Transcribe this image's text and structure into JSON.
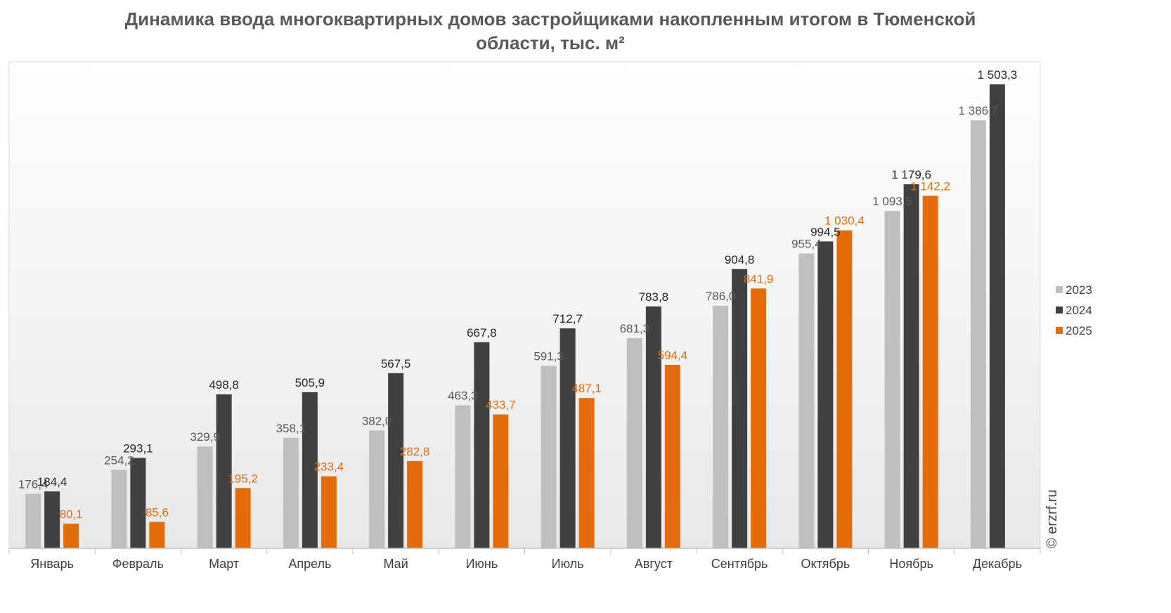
{
  "chart_data": {
    "type": "bar",
    "title": "Динамика ввода многоквартирных домов застройщиками накопленным итогом в Тюменской области, тыс. м²",
    "title_lines": [
      "Динамика ввода многоквартирных домов застройщиками накопленным итогом в Тюменской",
      "области, тыс. м²"
    ],
    "categories": [
      "Январь",
      "Февраль",
      "Март",
      "Апрель",
      "Май",
      "Июнь",
      "Июль",
      "Август",
      "Сентябрь",
      "Октябрь",
      "Ноябрь",
      "Декабрь"
    ],
    "series": [
      {
        "name": "2023",
        "color": "#bfbfbf",
        "label_color": "#595959",
        "values": [
          176.4,
          254.2,
          329.9,
          358.1,
          382.0,
          463.3,
          591.3,
          681.3,
          786.0,
          955.4,
          1093.5,
          1386.7
        ],
        "labels": [
          "176,4",
          "254,2",
          "329,9",
          "358,1",
          "382,0",
          "463,3",
          "591,3",
          "681,3",
          "786,0",
          "955,4",
          "1 093,5",
          "1 386,7"
        ]
      },
      {
        "name": "2024",
        "color": "#404040",
        "label_color": "#262626",
        "values": [
          184.4,
          293.1,
          498.8,
          505.9,
          567.5,
          667.8,
          712.7,
          783.8,
          904.8,
          994.5,
          1179.6,
          1503.3
        ],
        "labels": [
          "184,4",
          "293,1",
          "498,8",
          "505,9",
          "567,5",
          "667,8",
          "712,7",
          "783,8",
          "904,8",
          "994,5",
          "1 179,6",
          "1 503,3"
        ]
      },
      {
        "name": "2025",
        "color": "#e46c0a",
        "label_color": "#e46c0a",
        "values": [
          80.1,
          85.6,
          195.2,
          233.4,
          282.8,
          433.7,
          487.1,
          594.4,
          841.9,
          1030.4,
          1142.2,
          null
        ],
        "labels": [
          "80,1",
          "85,6",
          "195,2",
          "233,4",
          "282,8",
          "433,7",
          "487,1",
          "594,4",
          "841,9",
          "1 030,4",
          "1 142,2",
          ""
        ]
      }
    ],
    "ylim": [
      0,
      1560
    ],
    "grid": false,
    "legend_position": "right"
  },
  "watermark": "© erzrf.ru"
}
